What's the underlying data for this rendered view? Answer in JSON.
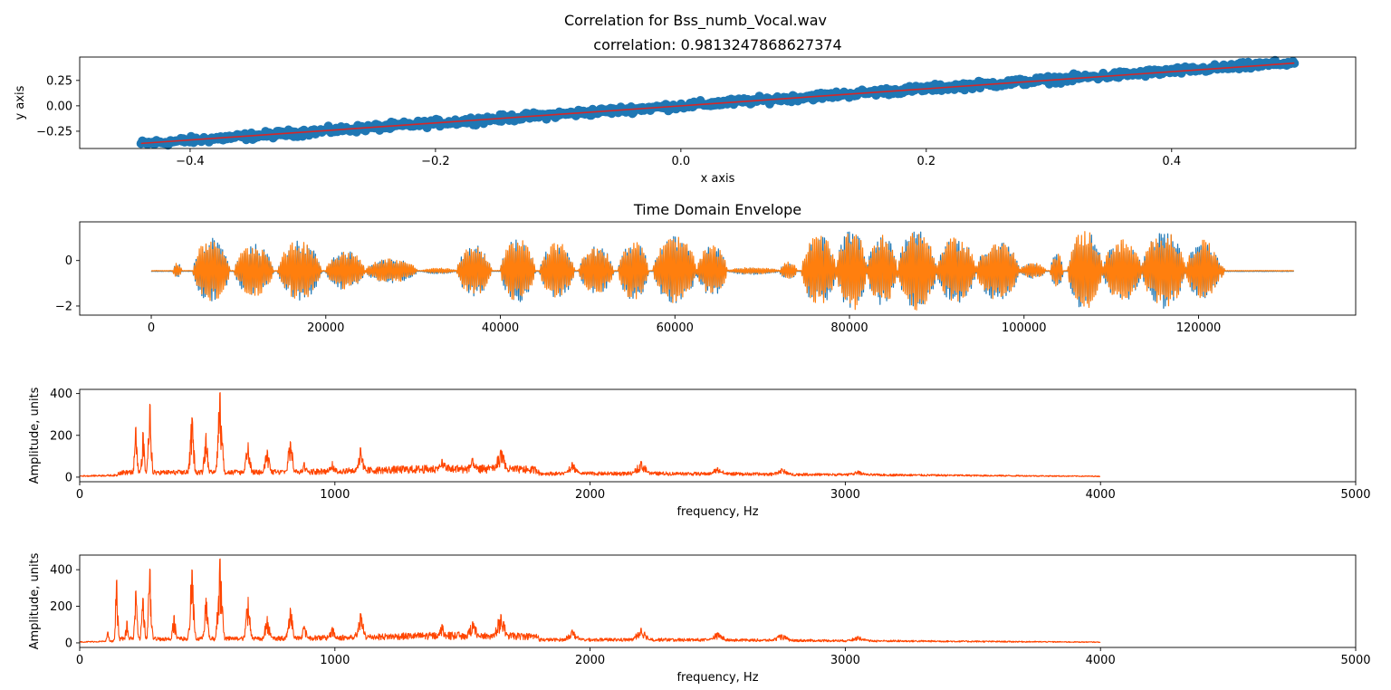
{
  "figure": {
    "suptitle": "Correlation for Bss_numb_Vocal.wav",
    "colors": {
      "scatter": "#1f77b4",
      "fit_line": "#d62728",
      "envelope_a": "#1f77b4",
      "envelope_b": "#ff7f0e",
      "spectrum": "#ff4500"
    }
  },
  "chart_data": [
    {
      "type": "scatter",
      "title": "correlation: 0.9813247868627374",
      "xlabel": "x axis",
      "ylabel": "y axis",
      "xlim": [
        -0.49,
        0.55
      ],
      "ylim": [
        -0.42,
        0.48
      ],
      "xticks": [
        -0.4,
        -0.2,
        0.0,
        0.2,
        0.4
      ],
      "xticklabels": [
        "−0.4",
        "−0.2",
        "0.0",
        "0.2",
        "0.4"
      ],
      "yticks": [
        -0.25,
        0.0,
        0.25
      ],
      "yticklabels": [
        "−0.25",
        "0.00",
        "0.25"
      ],
      "points": {
        "x_range": [
          -0.44,
          0.5
        ],
        "slope": 0.85,
        "intercept": 0.0,
        "band_halfwidth": 0.03,
        "count": 900
      },
      "fit_line": {
        "x": [
          -0.44,
          0.5
        ],
        "y": [
          -0.37,
          0.42
        ]
      },
      "grid": false
    },
    {
      "type": "line",
      "title": "Time Domain Envelope",
      "xlabel": "",
      "ylabel": "",
      "xlim": [
        -8200,
        138000
      ],
      "ylim": [
        -2.4,
        1.7
      ],
      "xticks": [
        0,
        20000,
        40000,
        60000,
        80000,
        100000,
        120000
      ],
      "xticklabels": [
        "0",
        "20000",
        "40000",
        "60000",
        "80000",
        "100000",
        "120000"
      ],
      "yticks": [
        0,
        -2
      ],
      "yticklabels": [
        "0",
        "−2"
      ],
      "baseline": -0.45,
      "x_extent": [
        0,
        131000
      ],
      "bursts": [
        {
          "start": 2500,
          "end": 3500,
          "amp": 0.35
        },
        {
          "start": 4800,
          "end": 9000,
          "amp": 1.45
        },
        {
          "start": 9500,
          "end": 14000,
          "amp": 1.2
        },
        {
          "start": 14500,
          "end": 19500,
          "amp": 1.35
        },
        {
          "start": 20000,
          "end": 24500,
          "amp": 0.9
        },
        {
          "start": 24500,
          "end": 30500,
          "amp": 0.55
        },
        {
          "start": 31000,
          "end": 35000,
          "amp": 0.12
        },
        {
          "start": 35000,
          "end": 39000,
          "amp": 1.15
        },
        {
          "start": 40000,
          "end": 44000,
          "amp": 1.45
        },
        {
          "start": 44500,
          "end": 48500,
          "amp": 1.25
        },
        {
          "start": 49000,
          "end": 53000,
          "amp": 1.1
        },
        {
          "start": 53500,
          "end": 57000,
          "amp": 1.35
        },
        {
          "start": 57500,
          "end": 62500,
          "amp": 1.55
        },
        {
          "start": 62500,
          "end": 66000,
          "amp": 1.15
        },
        {
          "start": 66000,
          "end": 72000,
          "amp": 0.15
        },
        {
          "start": 72000,
          "end": 74000,
          "amp": 0.4
        },
        {
          "start": 74500,
          "end": 78500,
          "amp": 1.6
        },
        {
          "start": 78500,
          "end": 82000,
          "amp": 1.9
        },
        {
          "start": 82000,
          "end": 85500,
          "amp": 1.6
        },
        {
          "start": 85500,
          "end": 90000,
          "amp": 1.85
        },
        {
          "start": 90000,
          "end": 94500,
          "amp": 1.5
        },
        {
          "start": 94500,
          "end": 99500,
          "amp": 1.35
        },
        {
          "start": 99500,
          "end": 102500,
          "amp": 0.35
        },
        {
          "start": 103000,
          "end": 104500,
          "amp": 0.8
        },
        {
          "start": 105000,
          "end": 109000,
          "amp": 1.85
        },
        {
          "start": 109000,
          "end": 113500,
          "amp": 1.4
        },
        {
          "start": 113500,
          "end": 118500,
          "amp": 1.75
        },
        {
          "start": 118500,
          "end": 122500,
          "amp": 1.35
        },
        {
          "start": 121500,
          "end": 123000,
          "amp": 0.4
        }
      ],
      "grid": false
    },
    {
      "type": "line",
      "title": "",
      "xlabel": "frequency, Hz",
      "ylabel": "Amplitude, units",
      "xlim": [
        0,
        5000
      ],
      "ylim": [
        -22,
        420
      ],
      "xticks": [
        0,
        1000,
        2000,
        3000,
        4000,
        5000
      ],
      "xticklabels": [
        "0",
        "1000",
        "2000",
        "3000",
        "4000",
        "5000"
      ],
      "yticks": [
        0,
        200,
        400
      ],
      "yticklabels": [
        "0",
        "200",
        "400"
      ],
      "x_extent": [
        0,
        4000
      ],
      "peaks": [
        {
          "f": 220,
          "a": 240
        },
        {
          "f": 248,
          "a": 215
        },
        {
          "f": 275,
          "a": 350
        },
        {
          "f": 440,
          "a": 285
        },
        {
          "f": 495,
          "a": 210
        },
        {
          "f": 550,
          "a": 405
        },
        {
          "f": 660,
          "a": 165
        },
        {
          "f": 735,
          "a": 130
        },
        {
          "f": 825,
          "a": 170
        },
        {
          "f": 880,
          "a": 70
        },
        {
          "f": 990,
          "a": 75
        },
        {
          "f": 1100,
          "a": 140
        },
        {
          "f": 1420,
          "a": 85
        },
        {
          "f": 1540,
          "a": 90
        },
        {
          "f": 1650,
          "a": 130
        },
        {
          "f": 1930,
          "a": 70
        },
        {
          "f": 2200,
          "a": 75
        },
        {
          "f": 2500,
          "a": 45
        },
        {
          "f": 2750,
          "a": 40
        },
        {
          "f": 3050,
          "a": 30
        }
      ],
      "grid": false
    },
    {
      "type": "line",
      "title": "",
      "xlabel": "frequency, Hz",
      "ylabel": "Amplitude, units",
      "xlim": [
        0,
        5000
      ],
      "ylim": [
        -25,
        480
      ],
      "xticks": [
        0,
        1000,
        2000,
        3000,
        4000,
        5000
      ],
      "xticklabels": [
        "0",
        "1000",
        "2000",
        "3000",
        "4000",
        "5000"
      ],
      "yticks": [
        0,
        200,
        400
      ],
      "yticklabels": [
        "0",
        "200",
        "400"
      ],
      "x_extent": [
        0,
        4000
      ],
      "peaks": [
        {
          "f": 110,
          "a": 60
        },
        {
          "f": 145,
          "a": 345
        },
        {
          "f": 185,
          "a": 120
        },
        {
          "f": 220,
          "a": 285
        },
        {
          "f": 248,
          "a": 245
        },
        {
          "f": 275,
          "a": 405
        },
        {
          "f": 370,
          "a": 150
        },
        {
          "f": 440,
          "a": 400
        },
        {
          "f": 495,
          "a": 245
        },
        {
          "f": 550,
          "a": 460
        },
        {
          "f": 660,
          "a": 250
        },
        {
          "f": 735,
          "a": 145
        },
        {
          "f": 825,
          "a": 190
        },
        {
          "f": 880,
          "a": 90
        },
        {
          "f": 990,
          "a": 85
        },
        {
          "f": 1100,
          "a": 160
        },
        {
          "f": 1420,
          "a": 100
        },
        {
          "f": 1540,
          "a": 115
        },
        {
          "f": 1650,
          "a": 155
        },
        {
          "f": 1930,
          "a": 70
        },
        {
          "f": 2200,
          "a": 80
        },
        {
          "f": 2500,
          "a": 55
        },
        {
          "f": 2750,
          "a": 45
        },
        {
          "f": 3050,
          "a": 35
        }
      ],
      "grid": false
    }
  ]
}
